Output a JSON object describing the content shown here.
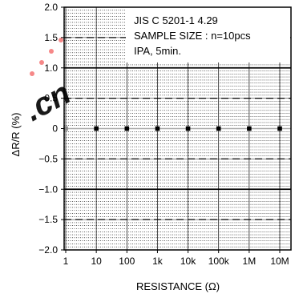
{
  "chart_data": {
    "type": "scatter",
    "annotation": {
      "lines": [
        "JIS C 5201-1 4.29",
        "SAMPLE SIZE : n=10pcs",
        "IPA, 5min."
      ]
    },
    "xlabel": "RESISTANCE (Ω)",
    "ylabel": "ΔR/R (%)",
    "categories": [
      "1",
      "10",
      "100",
      "1k",
      "10k",
      "100k",
      "1M",
      "10M"
    ],
    "x_scale": "log",
    "ylim": [
      -2.0,
      2.0
    ],
    "y_ticks": [
      2.0,
      1.5,
      1.0,
      0.5,
      0,
      -0.5,
      -1.0,
      -1.5,
      -2.0
    ],
    "y_tick_labels": [
      "2.0",
      "1.5",
      "1.0",
      "0.5",
      "0",
      "−0.5",
      "−1.0",
      "−1.5",
      "−2.0"
    ],
    "values": [
      0,
      0,
      0,
      0,
      0,
      0,
      0,
      0
    ],
    "limit_lines": [
      {
        "value": 1.0,
        "style": "solid"
      },
      {
        "value": -1.0,
        "style": "solid"
      },
      {
        "value": 1.5,
        "style": "dashed"
      },
      {
        "value": 0.5,
        "style": "dashed"
      },
      {
        "value": -0.5,
        "style": "dashed"
      },
      {
        "value": -1.5,
        "style": "dashed"
      }
    ],
    "grid": true,
    "colors": {
      "markers": "#000000",
      "first_marker": "#888888",
      "zero_line": "#aaaaaa",
      "grid": "#000000",
      "watermark": "#ee1111"
    }
  }
}
